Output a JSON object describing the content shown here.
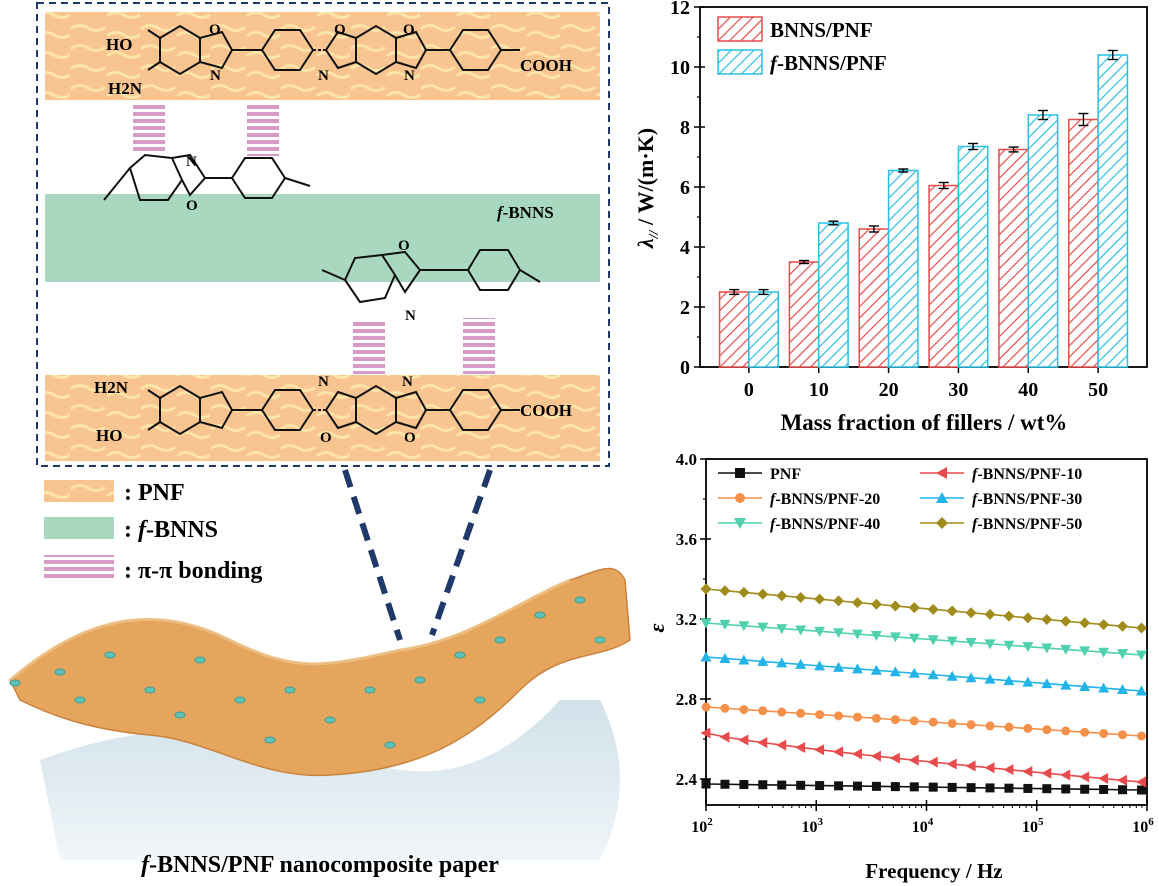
{
  "schematic": {
    "top_chain": {
      "ho": "HO",
      "nh2": "H2N",
      "cooh": "COOH"
    },
    "bottom_chain": {
      "nh2": "H2N",
      "ho": "HO",
      "cooh": "COOH"
    },
    "ring_atoms": {
      "o": "O",
      "n": "N"
    },
    "layer_label": {
      "italic": "f",
      "rest": "-BNNS"
    },
    "legend": [
      {
        "label": ": PNF",
        "swatch": "pnf"
      },
      {
        "label": ": f-BNNS",
        "italic": "f",
        "rest": "-BNNS",
        "prefix": ": ",
        "swatch": "bnns"
      },
      {
        "label": ": π-π bonding",
        "swatch": "pipi"
      }
    ],
    "caption": {
      "italic": "f",
      "rest": "-BNNS/PNF nanocomposite paper"
    },
    "colors": {
      "pnf_fill": "#f8c48f",
      "pnf_fiber": "#fde4a8",
      "bnns_fill": "#a9d8c1",
      "pipi": "#d89bc8",
      "frame": "#1f3a6a"
    }
  },
  "chart_data": [
    {
      "type": "bar",
      "categories": [
        "0",
        "10",
        "20",
        "30",
        "40",
        "50"
      ],
      "series": [
        {
          "name": "BNNS/PNF",
          "values": [
            2.5,
            3.5,
            4.6,
            6.05,
            7.25,
            8.25
          ],
          "errors": [
            0.08,
            0.05,
            0.1,
            0.1,
            0.08,
            0.2
          ],
          "color": "#e84b4b"
        },
        {
          "name": "f-BNNS/PNF",
          "name_italic": "f",
          "name_rest": "-BNNS/PNF",
          "values": [
            2.5,
            4.8,
            6.55,
            7.35,
            8.4,
            10.4
          ],
          "errors": [
            0.08,
            0.06,
            0.05,
            0.1,
            0.15,
            0.15
          ],
          "color": "#2bbfe4"
        }
      ],
      "xlabel": "Mass fraction of fillers / wt%",
      "ylabel": {
        "symbol": "λ",
        "subscript": "//",
        "rest": " / W/(m·K)"
      },
      "ylim": [
        0,
        12
      ],
      "yticks": [
        "0",
        "2",
        "4",
        "6",
        "8",
        "10",
        "12"
      ],
      "legend": "top-left"
    },
    {
      "type": "line",
      "x_log_exponents": [
        2,
        3,
        4,
        5,
        6
      ],
      "xtick_base": "10",
      "xlim_log": [
        2,
        5.95
      ],
      "series": [
        {
          "name": "PNF",
          "start": 2.375,
          "end": 2.345,
          "marker": "square",
          "color": "#111111"
        },
        {
          "name": "f-BNNS/PNF-10",
          "name_italic": "f",
          "name_rest": "-BNNS/PNF-10",
          "start": 2.63,
          "end": 2.385,
          "marker": "triangle-left",
          "color": "#e84b4b"
        },
        {
          "name": "f-BNNS/PNF-20",
          "name_italic": "f",
          "name_rest": "-BNNS/PNF-20",
          "start": 2.76,
          "end": 2.615,
          "marker": "circle",
          "color": "#f4904a"
        },
        {
          "name": "f-BNNS/PNF-30",
          "name_italic": "f",
          "name_rest": "-BNNS/PNF-30",
          "start": 3.01,
          "end": 2.84,
          "marker": "triangle-up",
          "color": "#22b3e8"
        },
        {
          "name": "f-BNNS/PNF-40",
          "name_italic": "f",
          "name_rest": "-BNNS/PNF-40",
          "start": 3.18,
          "end": 3.02,
          "marker": "triangle-down",
          "color": "#4fd1b0"
        },
        {
          "name": "f-BNNS/PNF-50",
          "name_italic": "f",
          "name_rest": "-BNNS/PNF-50",
          "start": 3.35,
          "end": 3.155,
          "marker": "diamond",
          "color": "#a08c1c"
        }
      ],
      "xlabel": "Frequency / Hz",
      "ylabel": "ε",
      "ylim": [
        2.27,
        4.0
      ],
      "yticks": [
        2.4,
        2.8,
        3.2,
        3.6,
        4.0
      ],
      "ytick_labels": [
        "2.4",
        "2.8",
        "3.2",
        "3.6",
        "4.0"
      ],
      "legend": "top"
    }
  ]
}
